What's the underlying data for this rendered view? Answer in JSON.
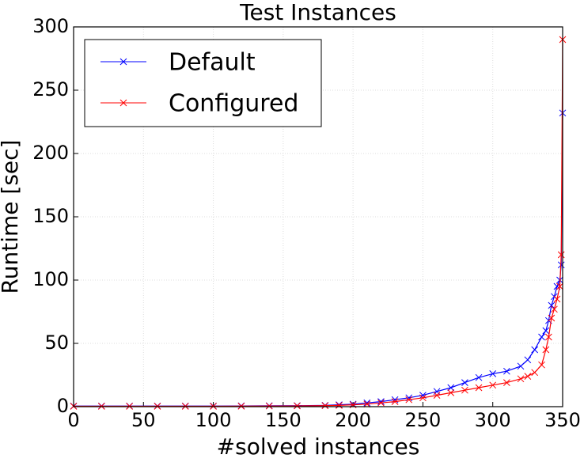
{
  "chart_data": {
    "type": "line",
    "title": "Test Instances",
    "xlabel": "#solved instances",
    "ylabel": "Runtime [sec]",
    "x": [
      0,
      20,
      40,
      60,
      80,
      100,
      120,
      140,
      160,
      180,
      190,
      200,
      210,
      220,
      230,
      240,
      250,
      260,
      270,
      280,
      290,
      300,
      310,
      320,
      325,
      330,
      335,
      338,
      340,
      342,
      344,
      346,
      348,
      349,
      350
    ],
    "series": [
      {
        "name": "Default",
        "color": "#0000ff",
        "values": [
          0.5,
          0.5,
          0.5,
          0.5,
          0.5,
          0.5,
          0.6,
          0.7,
          0.8,
          1,
          1.5,
          2,
          3,
          4,
          5.5,
          7,
          9,
          12,
          15,
          19,
          23,
          26,
          28,
          32,
          37,
          45,
          55,
          60,
          68,
          80,
          87,
          95,
          100,
          112,
          232
        ]
      },
      {
        "name": "Configured",
        "color": "#ff0000",
        "values": [
          0.3,
          0.3,
          0.3,
          0.3,
          0.3,
          0.3,
          0.4,
          0.5,
          0.6,
          0.8,
          1,
          1.5,
          2,
          3,
          4,
          5.5,
          7,
          9,
          11,
          13,
          15,
          17,
          19,
          22,
          24,
          27,
          33,
          45,
          55,
          70,
          77,
          85,
          95,
          120,
          290
        ]
      }
    ],
    "xlim": [
      0,
      350
    ],
    "xticks": [
      0,
      50,
      100,
      150,
      200,
      250,
      300,
      350
    ],
    "ylim": [
      0,
      300
    ],
    "yticks": [
      0,
      50,
      100,
      150,
      200,
      250,
      300
    ],
    "grid": true,
    "legend": "upper left"
  }
}
